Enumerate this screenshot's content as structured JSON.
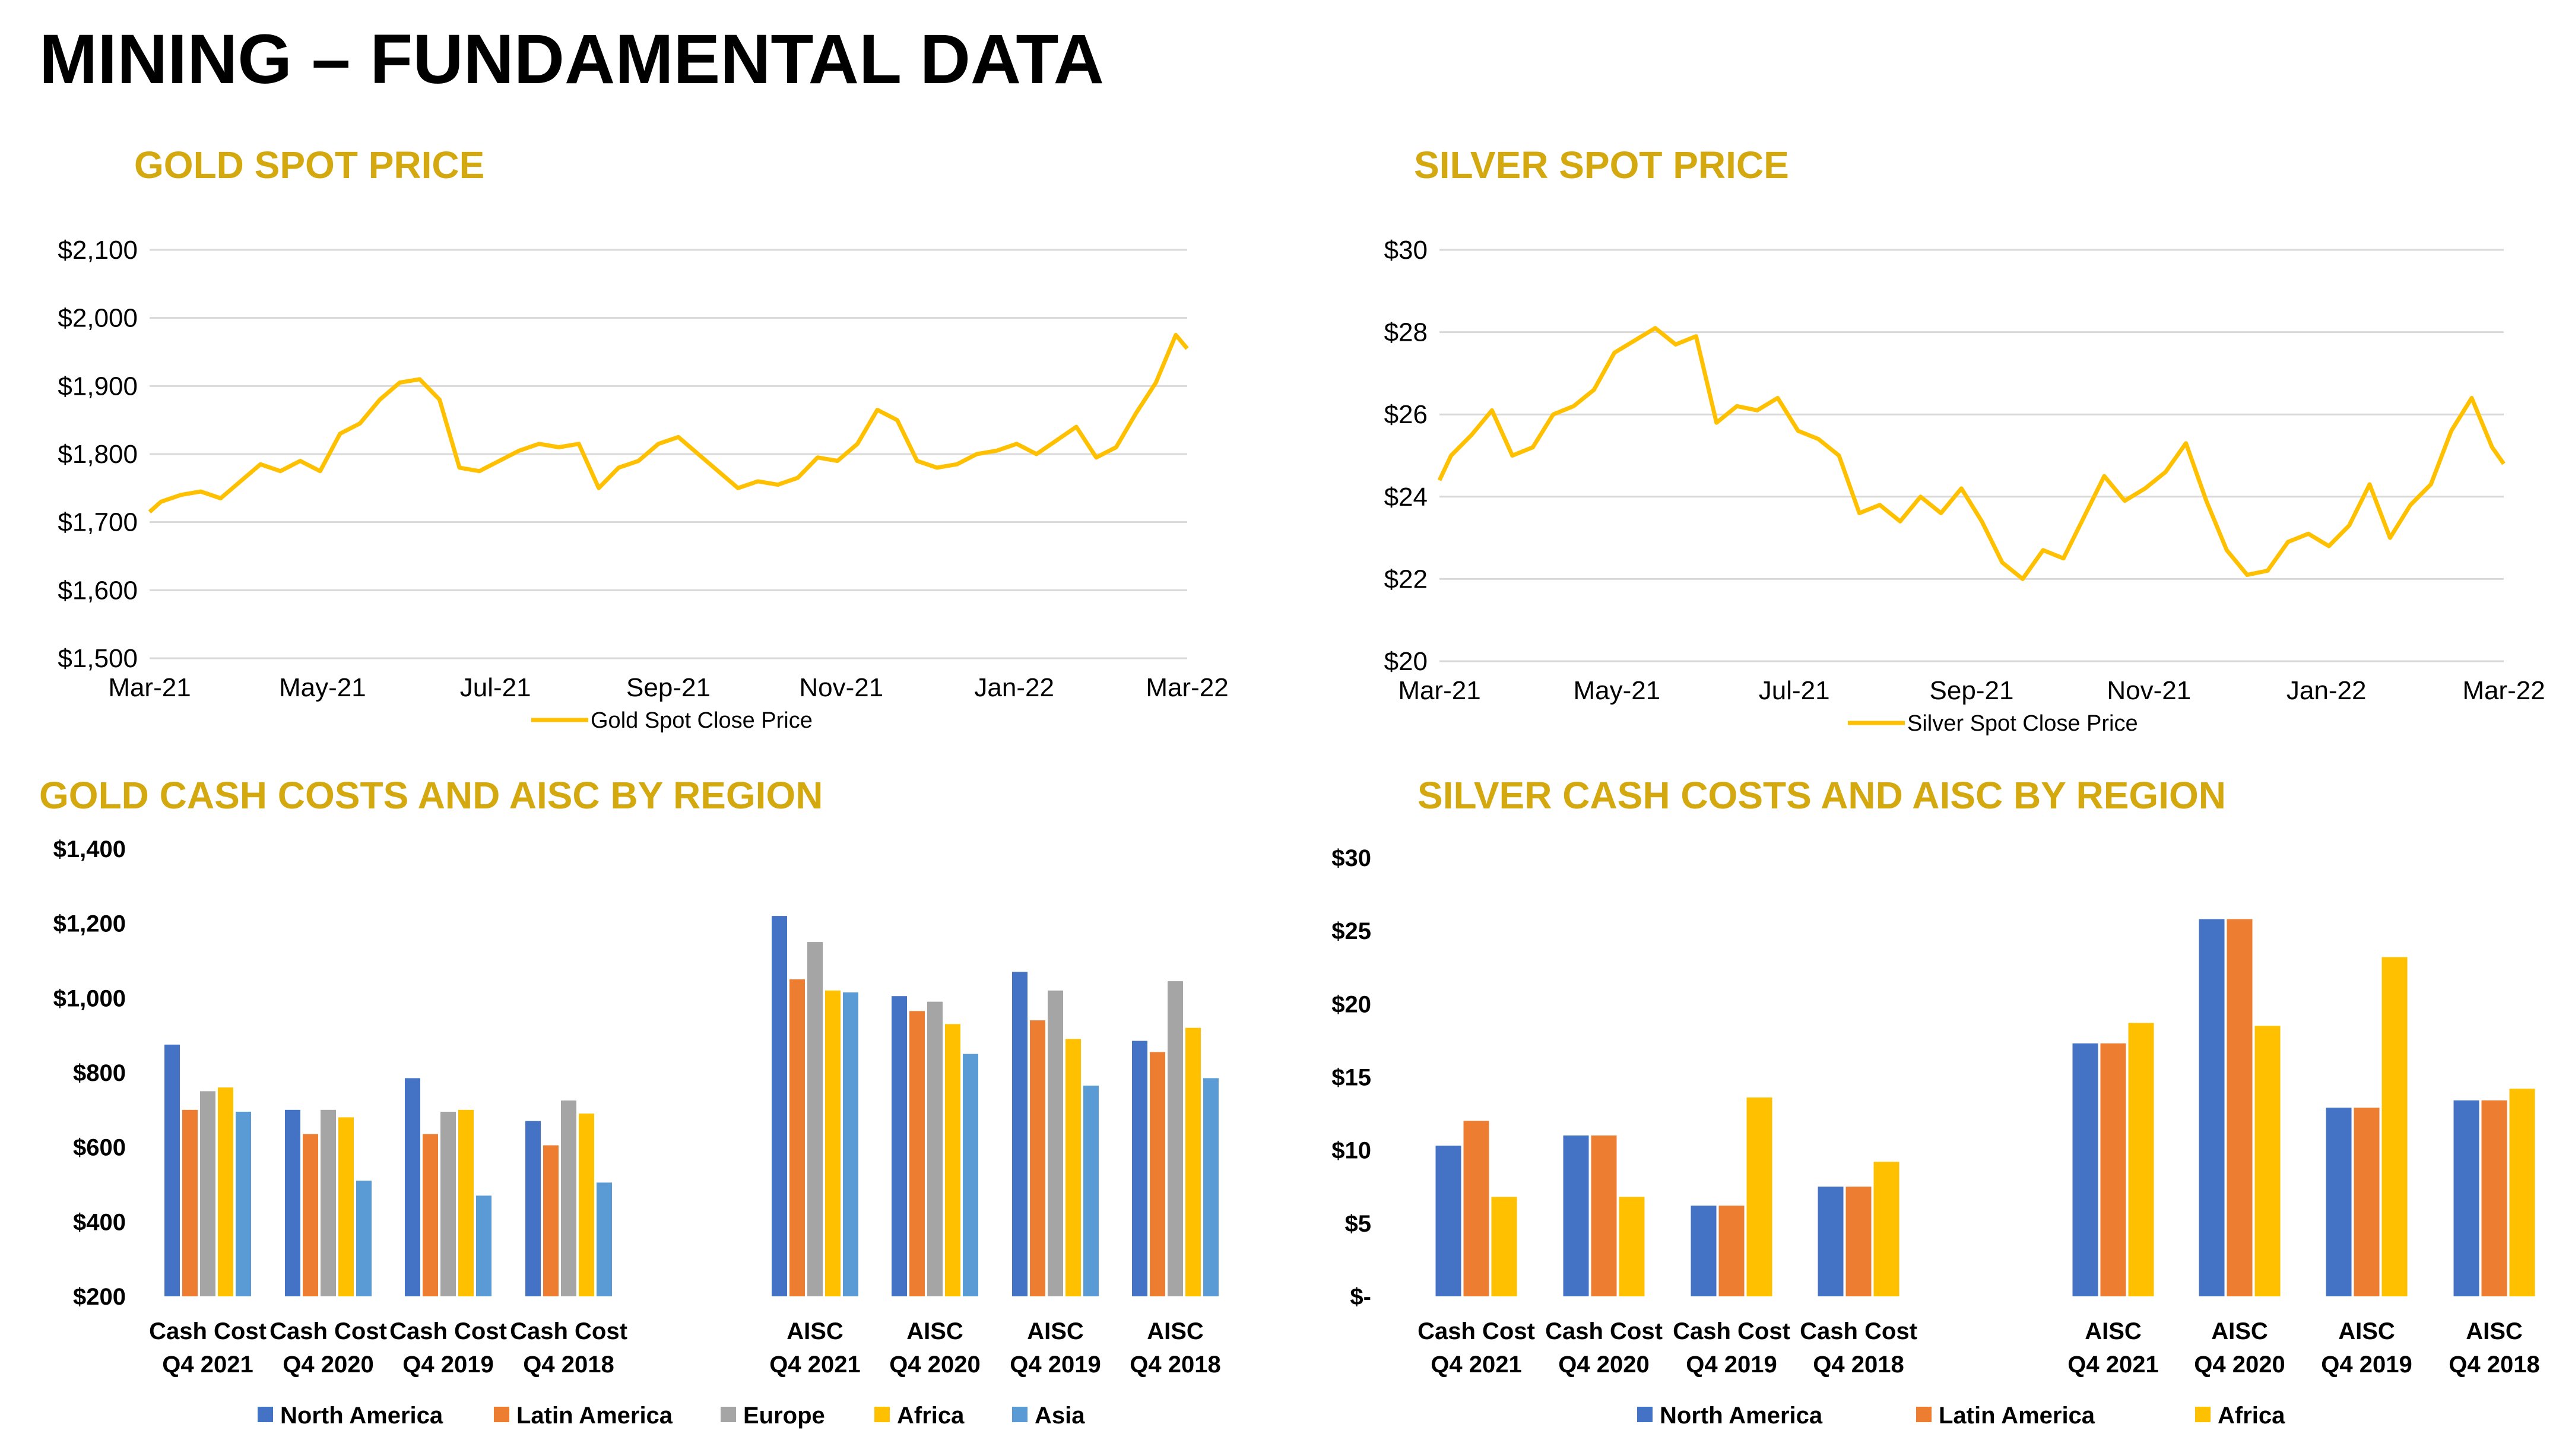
{
  "page_title": "MINING – FUNDAMENTAL DATA",
  "colors": {
    "title_gold": "#D4A80F",
    "price_line": "#FFC000",
    "north_america": "#4472C4",
    "latin_america": "#ED7D31",
    "europe": "#A5A5A5",
    "africa": "#FFC000",
    "asia": "#5B9BD5",
    "grid": "#D9D9D9"
  },
  "chart_data": [
    {
      "id": "gold-spot",
      "type": "line",
      "title": "GOLD SPOT PRICE",
      "x_ticks": [
        "Mar-21",
        "May-21",
        "Jul-21",
        "Sep-21",
        "Nov-21",
        "Jan-22",
        "Mar-22"
      ],
      "x_range": [
        "2021-03-01",
        "2022-03-01"
      ],
      "y_ticks": [
        "$1,500",
        "$1,600",
        "$1,700",
        "$1,800",
        "$1,900",
        "$2,000",
        "$2,100"
      ],
      "ylim": [
        1500,
        2100
      ],
      "grid": true,
      "legend_position": "bottom",
      "series": [
        {
          "name": "Gold Spot Close Price",
          "x": [
            "2021-03-01",
            "2021-03-05",
            "2021-03-12",
            "2021-03-19",
            "2021-03-26",
            "2021-04-02",
            "2021-04-09",
            "2021-04-16",
            "2021-04-23",
            "2021-04-30",
            "2021-05-07",
            "2021-05-14",
            "2021-05-21",
            "2021-05-28",
            "2021-06-04",
            "2021-06-11",
            "2021-06-18",
            "2021-06-25",
            "2021-07-02",
            "2021-07-09",
            "2021-07-16",
            "2021-07-23",
            "2021-07-30",
            "2021-08-06",
            "2021-08-13",
            "2021-08-20",
            "2021-08-27",
            "2021-09-03",
            "2021-09-10",
            "2021-09-17",
            "2021-09-24",
            "2021-10-01",
            "2021-10-08",
            "2021-10-15",
            "2021-10-22",
            "2021-10-29",
            "2021-11-05",
            "2021-11-12",
            "2021-11-19",
            "2021-11-26",
            "2021-12-03",
            "2021-12-10",
            "2021-12-17",
            "2021-12-24",
            "2021-12-31",
            "2022-01-07",
            "2022-01-14",
            "2022-01-21",
            "2022-01-28",
            "2022-02-04",
            "2022-02-11",
            "2022-02-18",
            "2022-02-25",
            "2022-03-01"
          ],
          "y": [
            1715,
            1730,
            1740,
            1745,
            1735,
            1760,
            1785,
            1775,
            1790,
            1775,
            1830,
            1845,
            1880,
            1905,
            1910,
            1880,
            1780,
            1775,
            1790,
            1805,
            1815,
            1810,
            1815,
            1750,
            1780,
            1790,
            1815,
            1825,
            1800,
            1775,
            1750,
            1760,
            1755,
            1765,
            1795,
            1790,
            1815,
            1865,
            1850,
            1790,
            1780,
            1785,
            1800,
            1805,
            1815,
            1800,
            1820,
            1840,
            1795,
            1810,
            1860,
            1905,
            1975,
            1955
          ]
        }
      ]
    },
    {
      "id": "silver-spot",
      "type": "line",
      "title": "SILVER SPOT PRICE",
      "x_ticks": [
        "Mar-21",
        "May-21",
        "Jul-21",
        "Sep-21",
        "Nov-21",
        "Jan-22",
        "Mar-22"
      ],
      "x_range": [
        "2021-03-01",
        "2022-03-01"
      ],
      "y_ticks": [
        "$20",
        "$22",
        "$24",
        "$26",
        "$28",
        "$30"
      ],
      "ylim": [
        20,
        30
      ],
      "grid": true,
      "legend_position": "bottom",
      "series": [
        {
          "name": "Silver Spot Close Price",
          "x": [
            "2021-03-01",
            "2021-03-05",
            "2021-03-12",
            "2021-03-19",
            "2021-03-26",
            "2021-04-02",
            "2021-04-09",
            "2021-04-16",
            "2021-04-23",
            "2021-04-30",
            "2021-05-07",
            "2021-05-14",
            "2021-05-21",
            "2021-05-28",
            "2021-06-04",
            "2021-06-11",
            "2021-06-18",
            "2021-06-25",
            "2021-07-02",
            "2021-07-09",
            "2021-07-16",
            "2021-07-23",
            "2021-07-30",
            "2021-08-06",
            "2021-08-13",
            "2021-08-20",
            "2021-08-27",
            "2021-09-03",
            "2021-09-10",
            "2021-09-17",
            "2021-09-24",
            "2021-10-01",
            "2021-10-08",
            "2021-10-15",
            "2021-10-22",
            "2021-10-29",
            "2021-11-05",
            "2021-11-12",
            "2021-11-19",
            "2021-11-26",
            "2021-12-03",
            "2021-12-10",
            "2021-12-17",
            "2021-12-24",
            "2021-12-31",
            "2022-01-07",
            "2022-01-14",
            "2022-01-21",
            "2022-01-28",
            "2022-02-04",
            "2022-02-11",
            "2022-02-18",
            "2022-02-25",
            "2022-03-01"
          ],
          "y": [
            24.4,
            25.0,
            25.5,
            26.1,
            25.0,
            25.2,
            26.0,
            26.2,
            26.6,
            27.5,
            27.8,
            28.1,
            27.7,
            27.9,
            25.8,
            26.2,
            26.1,
            26.4,
            25.6,
            25.4,
            25.0,
            23.6,
            23.8,
            23.4,
            24.0,
            23.6,
            24.2,
            23.4,
            22.4,
            22.0,
            22.7,
            22.5,
            23.5,
            24.5,
            23.9,
            24.2,
            24.6,
            25.3,
            23.9,
            22.7,
            22.1,
            22.2,
            22.9,
            23.1,
            22.8,
            23.3,
            24.3,
            23.0,
            23.8,
            24.3,
            25.6,
            26.4,
            25.2,
            24.8
          ]
        }
      ]
    },
    {
      "id": "gold-costs",
      "type": "bar",
      "title": "GOLD CASH COSTS AND AISC BY REGION",
      "categories": [
        {
          "line1": "Cash Cost",
          "line2": "Q4 2021"
        },
        {
          "line1": "Cash Cost",
          "line2": "Q4 2020"
        },
        {
          "line1": "Cash Cost",
          "line2": "Q4 2019"
        },
        {
          "line1": "Cash Cost",
          "line2": "Q4 2018"
        },
        {
          "line1": "AISC",
          "line2": "Q4 2021"
        },
        {
          "line1": "AISC",
          "line2": "Q4 2020"
        },
        {
          "line1": "AISC",
          "line2": "Q4 2019"
        },
        {
          "line1": "AISC",
          "line2": "Q4 2018"
        }
      ],
      "y_ticks": [
        "$200",
        "$400",
        "$600",
        "$800",
        "$1,000",
        "$1,200",
        "$1,400"
      ],
      "ylim": [
        200,
        1400
      ],
      "legend_position": "bottom",
      "series": [
        {
          "name": "North America",
          "values": [
            875,
            700,
            785,
            670,
            1220,
            1005,
            1070,
            885
          ]
        },
        {
          "name": "Latin America",
          "values": [
            700,
            635,
            635,
            605,
            1050,
            965,
            940,
            855
          ]
        },
        {
          "name": "Europe",
          "values": [
            750,
            700,
            695,
            725,
            1150,
            990,
            1020,
            1045
          ]
        },
        {
          "name": "Africa",
          "values": [
            760,
            680,
            700,
            690,
            1020,
            930,
            890,
            920
          ]
        },
        {
          "name": "Asia",
          "values": [
            695,
            510,
            470,
            505,
            1015,
            850,
            765,
            785
          ]
        }
      ]
    },
    {
      "id": "silver-costs",
      "type": "bar",
      "title": "SILVER CASH COSTS AND AISC BY REGION",
      "categories": [
        {
          "line1": "Cash Cost",
          "line2": "Q4 2021"
        },
        {
          "line1": "Cash Cost",
          "line2": "Q4 2020"
        },
        {
          "line1": "Cash Cost",
          "line2": "Q4 2019"
        },
        {
          "line1": "Cash Cost",
          "line2": "Q4 2018"
        },
        {
          "line1": "AISC",
          "line2": "Q4 2021"
        },
        {
          "line1": "AISC",
          "line2": "Q4 2020"
        },
        {
          "line1": "AISC",
          "line2": "Q4 2019"
        },
        {
          "line1": "AISC",
          "line2": "Q4 2018"
        }
      ],
      "y_ticks": [
        "$-",
        "$5",
        "$10",
        "$15",
        "$20",
        "$25",
        "$30"
      ],
      "ylim": [
        0,
        30
      ],
      "legend_position": "bottom",
      "series": [
        {
          "name": "North America",
          "values": [
            10.3,
            11.0,
            6.2,
            7.5,
            17.3,
            25.8,
            12.9,
            13.4
          ]
        },
        {
          "name": "Latin America",
          "values": [
            12.0,
            11.0,
            6.2,
            7.5,
            17.3,
            25.8,
            12.9,
            13.4
          ]
        },
        {
          "name": "Africa",
          "values": [
            6.8,
            6.8,
            13.6,
            9.2,
            18.7,
            18.5,
            23.2,
            14.2
          ]
        }
      ]
    }
  ]
}
